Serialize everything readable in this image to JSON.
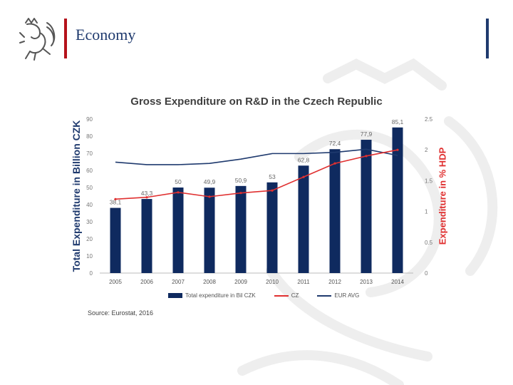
{
  "slide": {
    "title": "Economy"
  },
  "colors": {
    "bar": "#0f2a5f",
    "cz": "#e03030",
    "eur": "#1f3a6e",
    "accent_red": "#b5121b",
    "accent_blue": "#1f3a6e"
  },
  "chart_data": {
    "type": "bar",
    "title": "Gross Expenditure on R&D in the Czech Republic",
    "categories": [
      "2005",
      "2006",
      "2007",
      "2008",
      "2009",
      "2010",
      "2011",
      "2012",
      "2013",
      "2014"
    ],
    "series": [
      {
        "name": "Total expenditure in Bil CZK",
        "type": "bar",
        "axis": "left",
        "values": [
          38.1,
          43.3,
          50,
          49.9,
          50.9,
          53,
          62.8,
          72.4,
          77.9,
          85.1
        ],
        "labels": [
          "38,1",
          "43,3",
          "50",
          "49,9",
          "50,9",
          "53",
          "62,8",
          "72,4",
          "77,9",
          "85,1"
        ]
      },
      {
        "name": "CZ",
        "type": "line",
        "axis": "right",
        "values": [
          1.2,
          1.23,
          1.31,
          1.24,
          1.3,
          1.34,
          1.56,
          1.78,
          1.9,
          2.0
        ]
      },
      {
        "name": "EUR AVG",
        "type": "line",
        "axis": "right",
        "values": [
          1.8,
          1.76,
          1.76,
          1.78,
          1.85,
          1.94,
          1.94,
          1.96,
          2.01,
          1.91
        ]
      }
    ],
    "ylabel": "Total Expenditure in Billion CZK",
    "y2label": "Expenditure in % HDP",
    "ylim": [
      0,
      90
    ],
    "y2lim": [
      0,
      2.5
    ],
    "yticks": [
      0,
      10,
      20,
      30,
      40,
      50,
      60,
      70,
      80,
      90
    ],
    "y2ticks": [
      "0",
      "0.5",
      "1",
      "1.5",
      "2",
      "2.5"
    ],
    "source": "Source: Eurostat, 2016",
    "legend_position": "bottom"
  }
}
